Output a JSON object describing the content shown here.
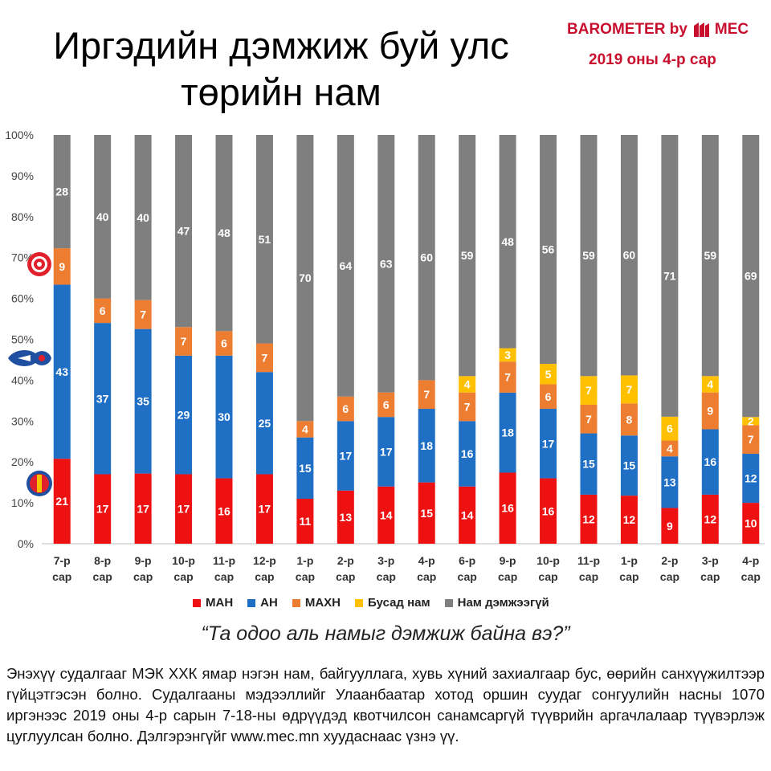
{
  "title": "Иргэдийн дэмжиж буй улс төрийн нам",
  "brand": {
    "text": "BAROMETER by",
    "logo_text": "MEC",
    "color": "#c8102e",
    "logo_icon": "mec-logo-icon"
  },
  "period": "2019 оны 4-р сар",
  "question": "“Та одоо аль намыг дэмжиж байна вэ?”",
  "note": "Энэхүү судалгааг МЭК ХХК ямар нэгэн нам, байгууллага, хувь хүний захиалгаар бус, өөрийн санхүүжилтээр гүйцэтгэсэн болно. Судалгааны мэдээллийг Улаанбаатар хотод оршин суудаг сонгуулийн насны 1070 иргэнээс 2019 оны 4-р сарын 7-18-ны өдрүүдэд квотчилсон санамсаргүй түүврийн аргачлалаар түүвэрлэж цуглуулсан болно. Дэлгэрэнгүйг www.mec.mn хуудаснаас үзнэ үү.",
  "party_icons": [
    "mpp-logo-icon",
    "dp-logo-icon",
    "mprp-logo-icon"
  ],
  "chart_data": {
    "type": "bar",
    "stacked": "percent",
    "categories": [
      "7-р сар",
      "8-р сар",
      "9-р сар",
      "10-р сар",
      "11-р сар",
      "12-р сар",
      "1-р сар",
      "2-р сар",
      "3-р сар",
      "4-р сар",
      "6-р сар",
      "9-р сар",
      "10-р сар",
      "11-р сар",
      "1-р сар",
      "2-р сар",
      "3-р сар",
      "4-р сар"
    ],
    "y_ticks": [
      "0%",
      "10%",
      "20%",
      "30%",
      "40%",
      "50%",
      "60%",
      "70%",
      "80%",
      "90%",
      "100%"
    ],
    "ylim": [
      0,
      100
    ],
    "grid": false,
    "legend_position": "bottom",
    "series": [
      {
        "name": "МАН",
        "color": "#ee1111",
        "values": [
          21,
          17,
          17,
          17,
          16,
          17,
          11,
          13,
          14,
          15,
          14,
          16,
          16,
          12,
          12,
          9,
          12,
          10
        ]
      },
      {
        "name": "АН",
        "color": "#1f6fc5",
        "values": [
          43,
          37,
          35,
          29,
          30,
          25,
          15,
          17,
          17,
          18,
          16,
          18,
          17,
          15,
          15,
          13,
          16,
          12
        ]
      },
      {
        "name": "МАХН",
        "color": "#ed7d31",
        "values": [
          9,
          6,
          7,
          7,
          6,
          7,
          4,
          6,
          6,
          7,
          7,
          7,
          6,
          7,
          8,
          4,
          9,
          7
        ]
      },
      {
        "name": "Бусад нам",
        "color": "#ffc000",
        "values": [
          0,
          0,
          0,
          0,
          0,
          0,
          0,
          0,
          0,
          0,
          4,
          3,
          5,
          7,
          7,
          6,
          4,
          2
        ]
      },
      {
        "name": "Нам дэмжээгүй",
        "color": "#7f7f7f",
        "values": [
          28,
          40,
          40,
          47,
          48,
          51,
          70,
          64,
          63,
          60,
          59,
          48,
          56,
          59,
          60,
          71,
          59,
          69
        ]
      }
    ]
  }
}
